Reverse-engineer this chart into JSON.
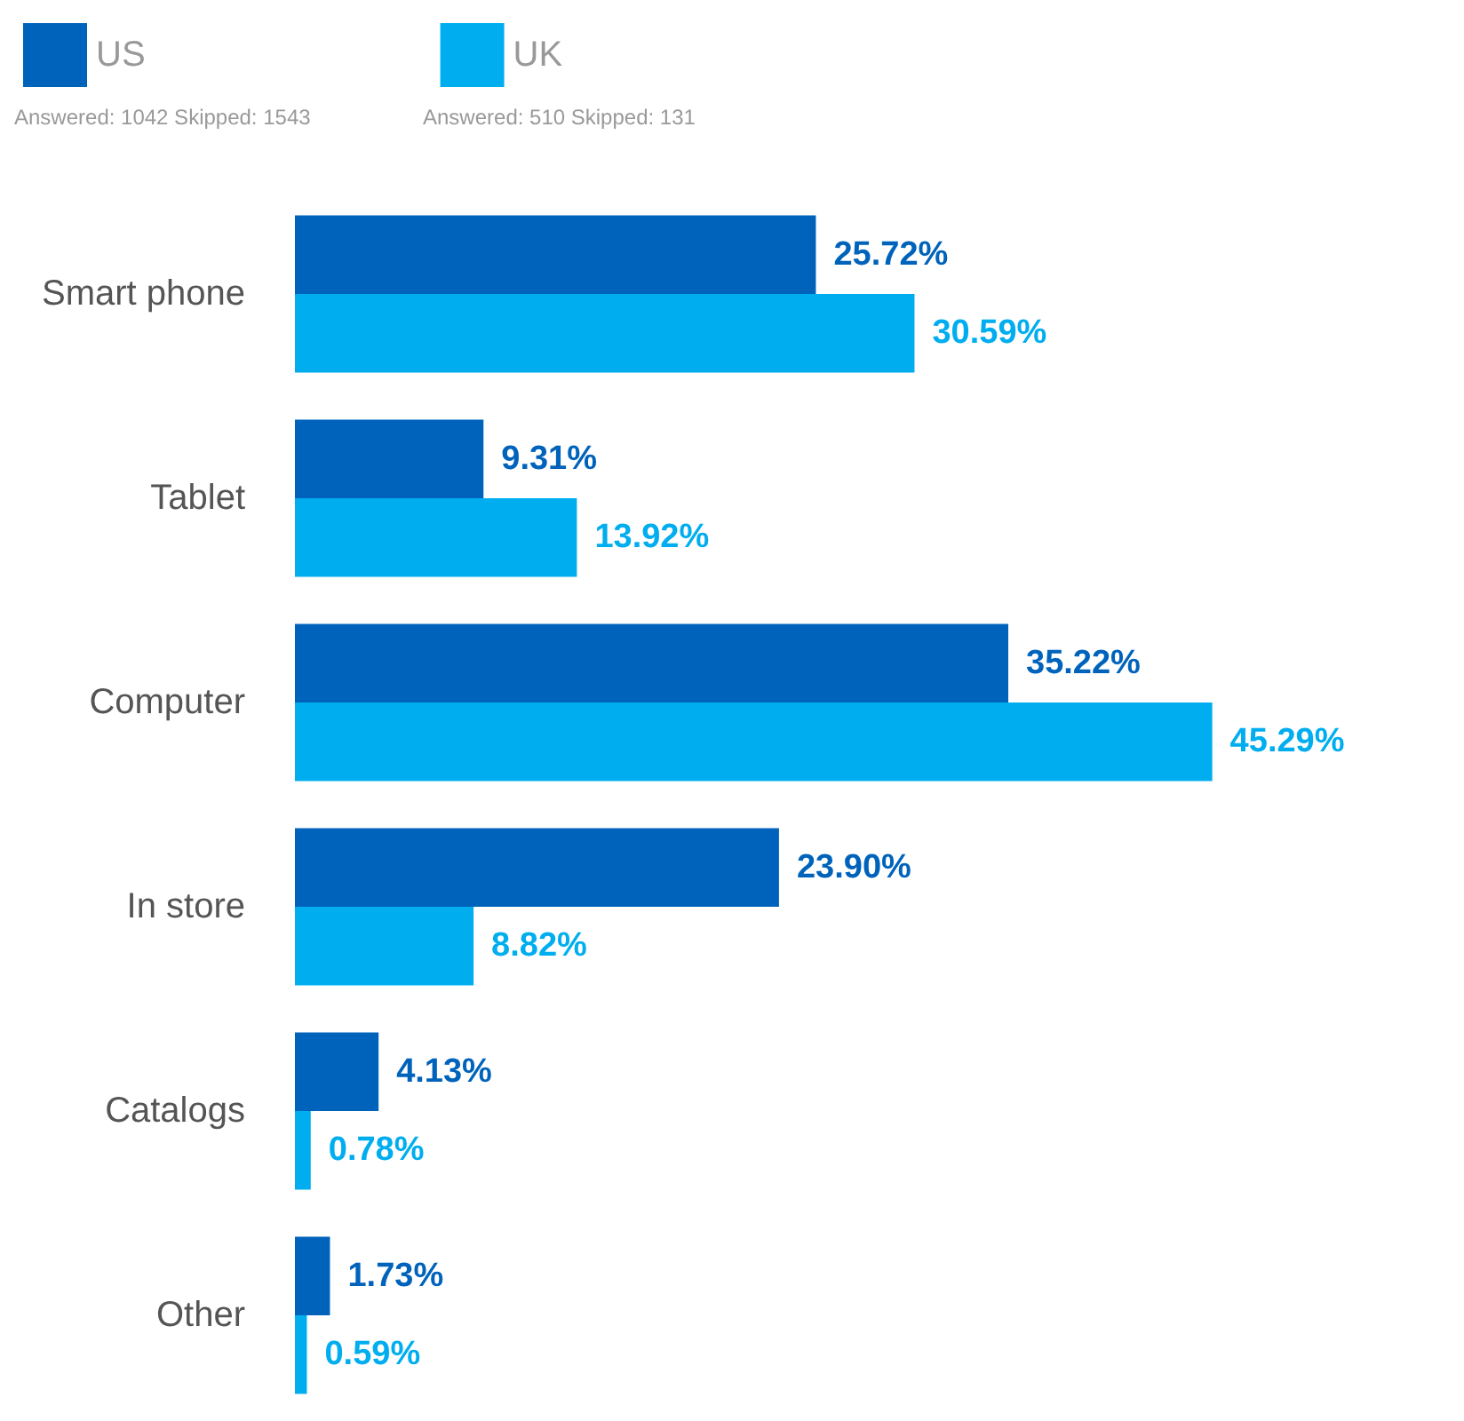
{
  "chart_data": {
    "type": "bar",
    "orientation": "horizontal",
    "categories": [
      "Smart phone",
      "Tablet",
      "Computer",
      "In store",
      "Catalogs",
      "Other"
    ],
    "series": [
      {
        "name": "US",
        "color": "#0063bb",
        "values": [
          25.72,
          9.31,
          35.22,
          23.9,
          4.13,
          1.73
        ],
        "value_labels": [
          "25.72%",
          "9.31%",
          "35.22%",
          "23.90%",
          "4.13%",
          "1.73%"
        ]
      },
      {
        "name": "UK",
        "color": "#00aeef",
        "values": [
          30.59,
          13.92,
          45.29,
          8.82,
          0.78,
          0.59
        ],
        "value_labels": [
          "30.59%",
          "13.92%",
          "45.29%",
          "8.82%",
          "0.78%",
          "0.59%"
        ]
      }
    ],
    "annotations": [
      "Answered: 1042 Skipped: 1543",
      "Answered: 510 Skipped: 131"
    ],
    "legend": "top left"
  }
}
